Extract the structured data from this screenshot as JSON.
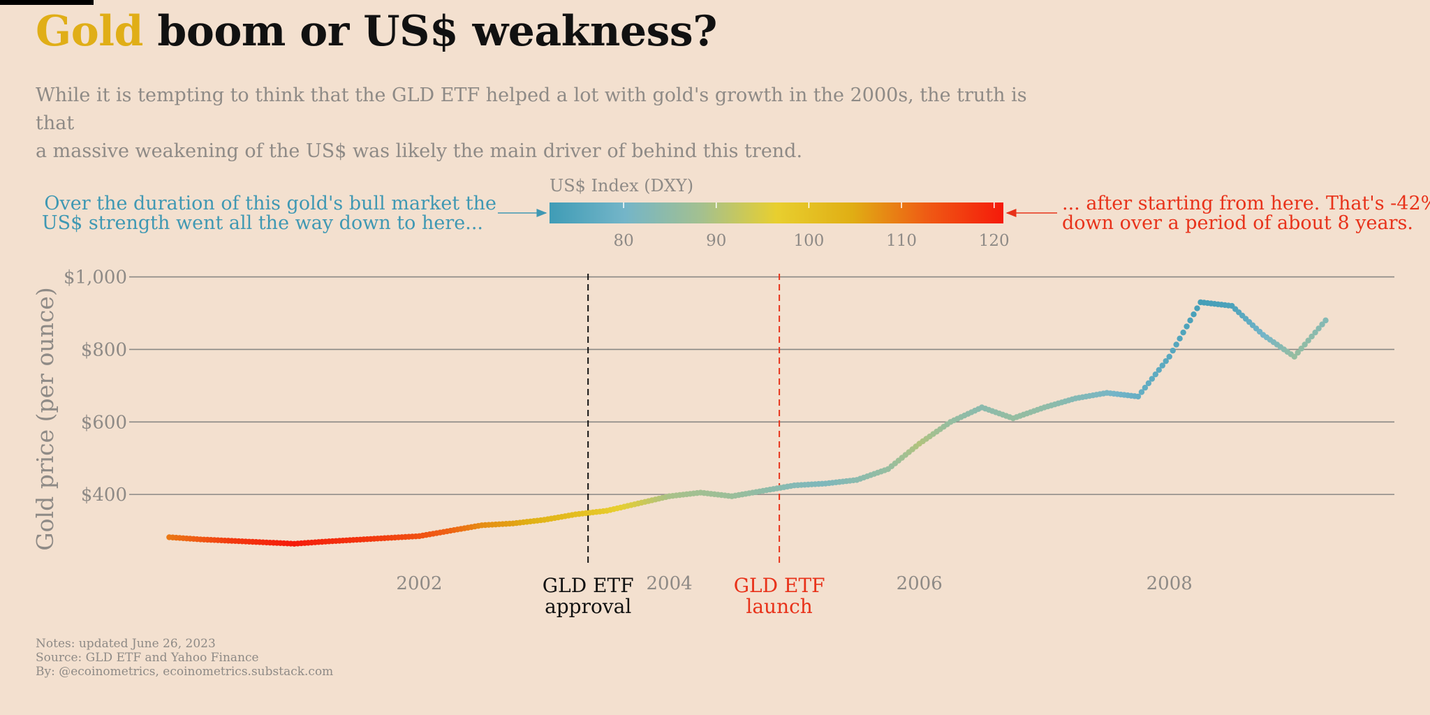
{
  "header": {
    "title_accent": "Gold",
    "title_rest": " boom or US$ weakness?",
    "subtitle_line1": "While it is tempting to think that the GLD ETF helped a lot with gold's growth in the 2000s, the truth is that",
    "subtitle_line2": "a massive weakening of the US$ was likely the main driver of behind this trend."
  },
  "legend": {
    "title": "US$ Index (DXY)",
    "ticks": [
      80,
      90,
      100,
      110,
      120
    ],
    "range": [
      72,
      121
    ],
    "colors": [
      "#3f9cb6",
      "#74b5c8",
      "#a3c090",
      "#e8cf2f",
      "#e0ae14",
      "#ef5a14",
      "#f51a0a"
    ],
    "left_note_line1": "Over the duration of this gold's bull market the",
    "left_note_line2": "US$ strength went all the way down to here...",
    "right_note_line1": "... after starting from here. That's -42%",
    "right_note_line2": "down over  a period of about 8 years.",
    "left_note_color": "#3f98b3",
    "right_note_color": "#e8321a"
  },
  "annotations": {
    "approval_line1": "GLD ETF",
    "approval_line2": "approval",
    "approval_x": 2003.35,
    "approval_color": "#111111",
    "launch_line1": "GLD ETF",
    "launch_line2": "launch",
    "launch_x": 2004.88,
    "launch_color": "#e8321a"
  },
  "chart_data": {
    "type": "scatter",
    "title": "Gold boom or US$ weakness?",
    "xlabel": "",
    "ylabel": "Gold price (per ounce)",
    "xlim": [
      1999.4,
      2009.8
    ],
    "ylim": [
      200,
      1080
    ],
    "x_ticks": [
      2002,
      2004,
      2006,
      2008
    ],
    "y_ticks": [
      400,
      600,
      800,
      1000
    ],
    "y_tick_labels": [
      "$400",
      "$600",
      "$800",
      "$1,000"
    ],
    "grid": "horizontal",
    "color_variable": "US$ Index (DXY)",
    "series": [
      {
        "x": [
          2000.0,
          2000.25,
          2000.5,
          2000.75,
          2001.0,
          2001.25,
          2001.5,
          2001.75,
          2002.0,
          2002.25,
          2002.5,
          2002.75,
          2003.0,
          2003.25,
          2003.5,
          2003.75,
          2004.0,
          2004.25,
          2004.5,
          2004.75,
          2005.0,
          2005.25,
          2005.5,
          2005.75,
          2006.0,
          2006.25,
          2006.5,
          2006.75,
          2007.0,
          2007.25,
          2007.5,
          2007.75,
          2008.0,
          2008.25,
          2008.5,
          2008.75,
          2009.0,
          2009.25
        ],
        "y": [
          282,
          276,
          272,
          268,
          264,
          270,
          275,
          280,
          285,
          300,
          315,
          320,
          330,
          345,
          355,
          375,
          395,
          405,
          395,
          410,
          425,
          430,
          440,
          470,
          540,
          600,
          640,
          610,
          640,
          665,
          680,
          670,
          780,
          930,
          920,
          840,
          780,
          880
        ],
        "dxy": [
          110,
          113,
          117,
          119,
          121,
          119,
          118,
          116,
          114,
          112,
          108,
          106,
          103,
          101,
          98,
          94,
          89,
          88,
          87,
          85,
          83,
          82,
          84,
          86,
          90,
          86,
          84,
          86,
          85,
          83,
          81,
          78,
          76,
          73,
          74,
          80,
          86,
          83
        ]
      }
    ]
  },
  "footer": {
    "line1": "Notes: updated June 26, 2023",
    "line2": "Source: GLD ETF and Yahoo Finance",
    "line3": "By: @ecoinometrics, ecoinometrics.substack.com"
  }
}
